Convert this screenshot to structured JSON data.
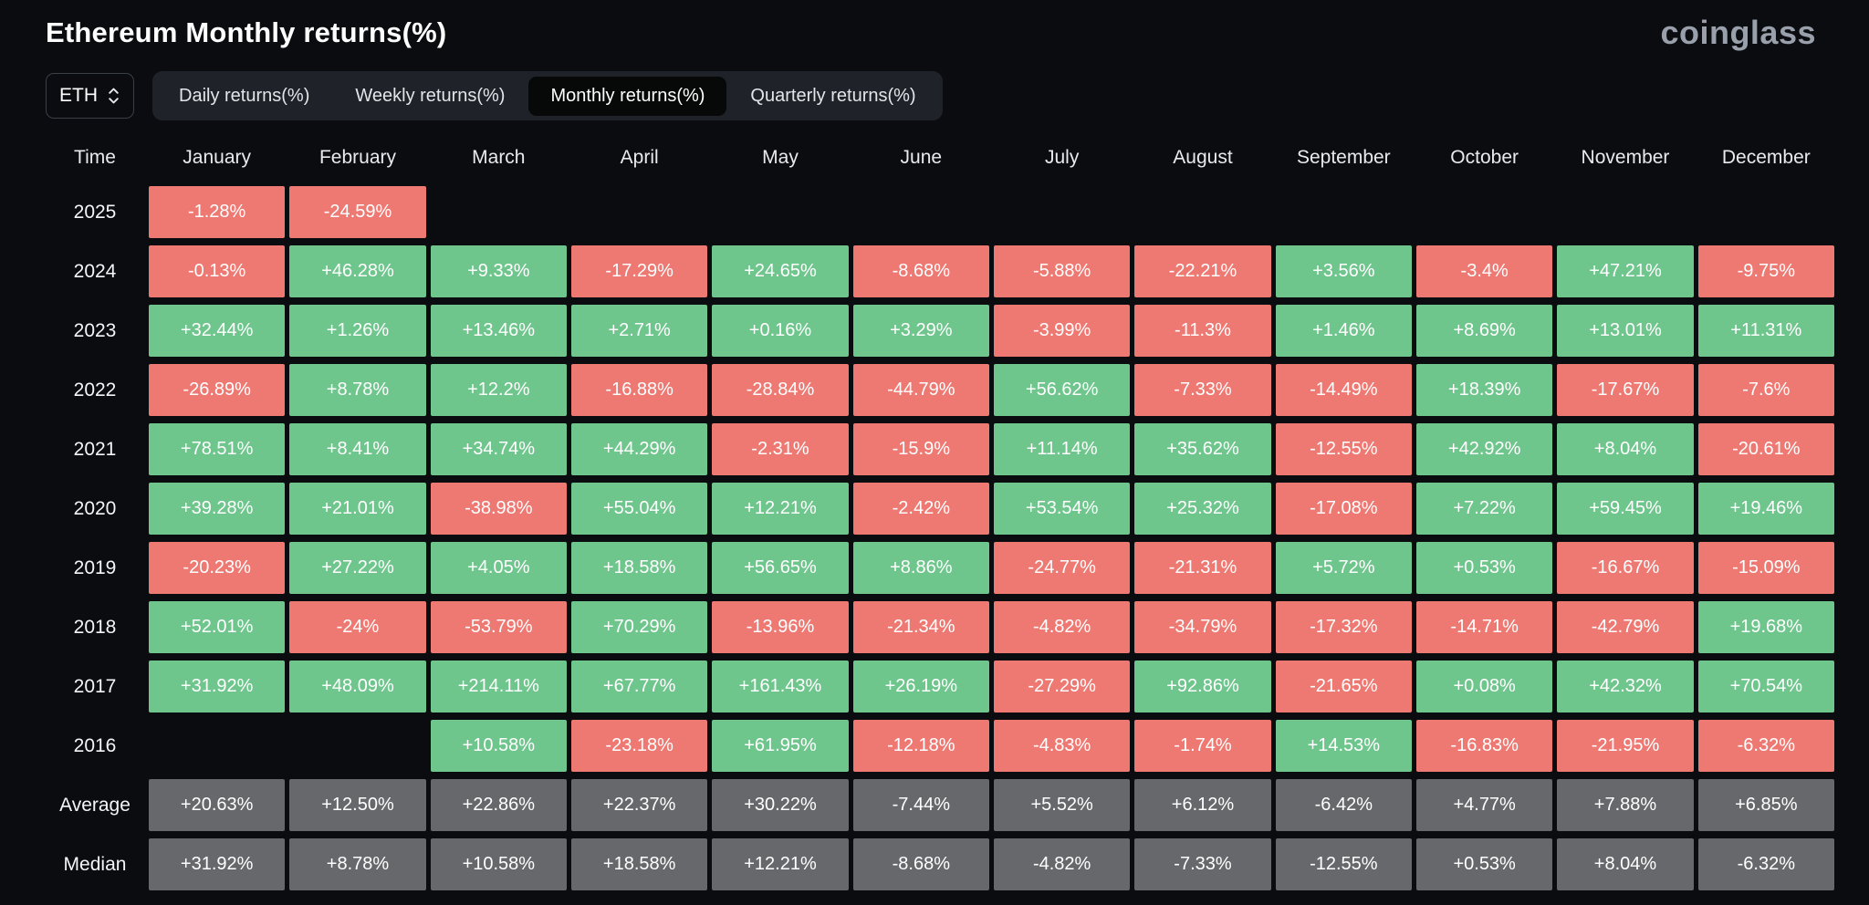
{
  "header": {
    "title": "Ethereum Monthly returns(%)",
    "brand": "coinglass"
  },
  "controls": {
    "symbol_select": {
      "value": "ETH"
    },
    "tabs": [
      {
        "label": "Daily returns(%)",
        "active": false
      },
      {
        "label": "Weekly returns(%)",
        "active": false
      },
      {
        "label": "Monthly returns(%)",
        "active": true
      },
      {
        "label": "Quarterly returns(%)",
        "active": false
      }
    ]
  },
  "table": {
    "corner_label": "Time",
    "months": [
      "January",
      "February",
      "March",
      "April",
      "May",
      "June",
      "July",
      "August",
      "September",
      "October",
      "November",
      "December"
    ],
    "rows": [
      {
        "label": "2025",
        "kind": "year",
        "values": [
          "-1.28%",
          "-24.59%",
          "",
          "",
          "",
          "",
          "",
          "",
          "",
          "",
          "",
          ""
        ]
      },
      {
        "label": "2024",
        "kind": "year",
        "values": [
          "-0.13%",
          "+46.28%",
          "+9.33%",
          "-17.29%",
          "+24.65%",
          "-8.68%",
          "-5.88%",
          "-22.21%",
          "+3.56%",
          "-3.4%",
          "+47.21%",
          "-9.75%"
        ]
      },
      {
        "label": "2023",
        "kind": "year",
        "values": [
          "+32.44%",
          "+1.26%",
          "+13.46%",
          "+2.71%",
          "+0.16%",
          "+3.29%",
          "-3.99%",
          "-11.3%",
          "+1.46%",
          "+8.69%",
          "+13.01%",
          "+11.31%"
        ]
      },
      {
        "label": "2022",
        "kind": "year",
        "values": [
          "-26.89%",
          "+8.78%",
          "+12.2%",
          "-16.88%",
          "-28.84%",
          "-44.79%",
          "+56.62%",
          "-7.33%",
          "-14.49%",
          "+18.39%",
          "-17.67%",
          "-7.6%"
        ]
      },
      {
        "label": "2021",
        "kind": "year",
        "values": [
          "+78.51%",
          "+8.41%",
          "+34.74%",
          "+44.29%",
          "-2.31%",
          "-15.9%",
          "+11.14%",
          "+35.62%",
          "-12.55%",
          "+42.92%",
          "+8.04%",
          "-20.61%"
        ]
      },
      {
        "label": "2020",
        "kind": "year",
        "values": [
          "+39.28%",
          "+21.01%",
          "-38.98%",
          "+55.04%",
          "+12.21%",
          "-2.42%",
          "+53.54%",
          "+25.32%",
          "-17.08%",
          "+7.22%",
          "+59.45%",
          "+19.46%"
        ]
      },
      {
        "label": "2019",
        "kind": "year",
        "values": [
          "-20.23%",
          "+27.22%",
          "+4.05%",
          "+18.58%",
          "+56.65%",
          "+8.86%",
          "-24.77%",
          "-21.31%",
          "+5.72%",
          "+0.53%",
          "-16.67%",
          "-15.09%"
        ]
      },
      {
        "label": "2018",
        "kind": "year",
        "values": [
          "+52.01%",
          "-24%",
          "-53.79%",
          "+70.29%",
          "-13.96%",
          "-21.34%",
          "-4.82%",
          "-34.79%",
          "-17.32%",
          "-14.71%",
          "-42.79%",
          "+19.68%"
        ]
      },
      {
        "label": "2017",
        "kind": "year",
        "values": [
          "+31.92%",
          "+48.09%",
          "+214.11%",
          "+67.77%",
          "+161.43%",
          "+26.19%",
          "-27.29%",
          "+92.86%",
          "-21.65%",
          "+0.08%",
          "+42.32%",
          "+70.54%"
        ]
      },
      {
        "label": "2016",
        "kind": "year",
        "values": [
          "",
          "",
          "+10.58%",
          "-23.18%",
          "+61.95%",
          "-12.18%",
          "-4.83%",
          "-1.74%",
          "+14.53%",
          "-16.83%",
          "-21.95%",
          "-6.32%"
        ]
      },
      {
        "label": "Average",
        "kind": "summary",
        "values": [
          "+20.63%",
          "+12.50%",
          "+22.86%",
          "+22.37%",
          "+30.22%",
          "-7.44%",
          "+5.52%",
          "+6.12%",
          "-6.42%",
          "+4.77%",
          "+7.88%",
          "+6.85%"
        ]
      },
      {
        "label": "Median",
        "kind": "summary",
        "values": [
          "+31.92%",
          "+8.78%",
          "+10.58%",
          "+18.58%",
          "+12.21%",
          "-8.68%",
          "-4.82%",
          "-7.33%",
          "-12.55%",
          "+0.53%",
          "+8.04%",
          "-6.32%"
        ]
      }
    ]
  },
  "colors": {
    "positive": "#6FC68D",
    "negative": "#EE7973",
    "summary": "#67686C",
    "background": "#0A0C10"
  },
  "chart_data": {
    "type": "heatmap",
    "title": "Ethereum Monthly returns(%)",
    "columns": [
      "January",
      "February",
      "March",
      "April",
      "May",
      "June",
      "July",
      "August",
      "September",
      "October",
      "November",
      "December"
    ],
    "row_labels": [
      "2025",
      "2024",
      "2023",
      "2022",
      "2021",
      "2020",
      "2019",
      "2018",
      "2017",
      "2016",
      "Average",
      "Median"
    ],
    "values": [
      [
        -1.28,
        -24.59,
        null,
        null,
        null,
        null,
        null,
        null,
        null,
        null,
        null,
        null
      ],
      [
        -0.13,
        46.28,
        9.33,
        -17.29,
        24.65,
        -8.68,
        -5.88,
        -22.21,
        3.56,
        -3.4,
        47.21,
        -9.75
      ],
      [
        32.44,
        1.26,
        13.46,
        2.71,
        0.16,
        3.29,
        -3.99,
        -11.3,
        1.46,
        8.69,
        13.01,
        11.31
      ],
      [
        -26.89,
        8.78,
        12.2,
        -16.88,
        -28.84,
        -44.79,
        56.62,
        -7.33,
        -14.49,
        18.39,
        -17.67,
        -7.6
      ],
      [
        78.51,
        8.41,
        34.74,
        44.29,
        -2.31,
        -15.9,
        11.14,
        35.62,
        -12.55,
        42.92,
        8.04,
        -20.61
      ],
      [
        39.28,
        21.01,
        -38.98,
        55.04,
        12.21,
        -2.42,
        53.54,
        25.32,
        -17.08,
        7.22,
        59.45,
        19.46
      ],
      [
        -20.23,
        27.22,
        4.05,
        18.58,
        56.65,
        8.86,
        -24.77,
        -21.31,
        5.72,
        0.53,
        -16.67,
        -15.09
      ],
      [
        52.01,
        -24,
        -53.79,
        70.29,
        -13.96,
        -21.34,
        -4.82,
        -34.79,
        -17.32,
        -14.71,
        -42.79,
        19.68
      ],
      [
        31.92,
        48.09,
        214.11,
        67.77,
        161.43,
        26.19,
        -27.29,
        92.86,
        -21.65,
        0.08,
        42.32,
        70.54
      ],
      [
        null,
        null,
        10.58,
        -23.18,
        61.95,
        -12.18,
        -4.83,
        -1.74,
        14.53,
        -16.83,
        -21.95,
        -6.32
      ],
      [
        20.63,
        12.5,
        22.86,
        22.37,
        30.22,
        -7.44,
        5.52,
        6.12,
        -6.42,
        4.77,
        7.88,
        6.85
      ],
      [
        31.92,
        8.78,
        10.58,
        18.58,
        12.21,
        -8.68,
        -4.82,
        -7.33,
        -12.55,
        0.53,
        8.04,
        -6.32
      ]
    ],
    "legend": "green = positive monthly return, red = negative monthly return, gray = summary rows"
  }
}
